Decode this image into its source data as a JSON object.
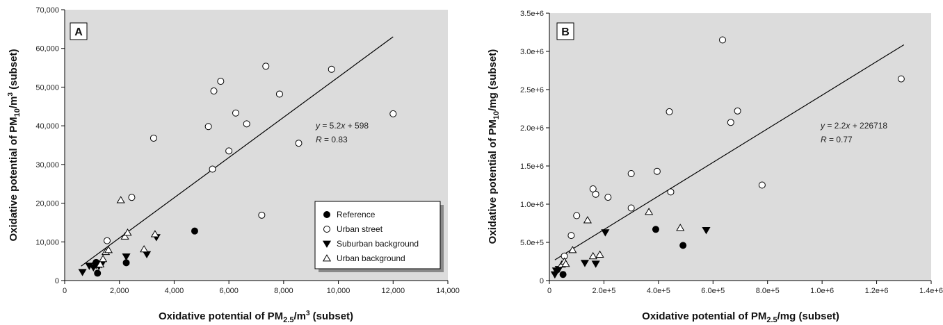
{
  "legend": {
    "items": [
      {
        "key": "reference",
        "label": "Reference"
      },
      {
        "key": "urban_street",
        "label": "Urban street"
      },
      {
        "key": "suburban_background",
        "label": "Suburban background"
      },
      {
        "key": "urban_background",
        "label": "Urban background"
      }
    ],
    "placement": "bottom-right of panel A"
  },
  "chart_data": [
    {
      "type": "scatter",
      "panel": "A",
      "xlabel": {
        "pre": "Oxidative potential of PM",
        "sub": "2.5",
        "post": "/m",
        "sup": "3",
        "tail": " (subset)"
      },
      "ylabel": {
        "pre": "Oxidative potential of PM",
        "sub": "10",
        "post": "/m",
        "sup": "3",
        "tail": " (subset)"
      },
      "xlim": [
        0,
        14000
      ],
      "ylim": [
        0,
        70000
      ],
      "xticks": [
        0,
        2000,
        4000,
        6000,
        8000,
        10000,
        12000,
        14000
      ],
      "xtick_labels": [
        "0",
        "2,000",
        "4,000",
        "6,000",
        "8,000",
        "10,000",
        "12,000",
        "14,000"
      ],
      "yticks": [
        0,
        10000,
        20000,
        30000,
        40000,
        50000,
        60000,
        70000
      ],
      "ytick_labels": [
        "0",
        "10,000",
        "20,000",
        "30,000",
        "40,000",
        "50,000",
        "60,000",
        "70,000"
      ],
      "grid": false,
      "background": "#dcdcdc",
      "fit": {
        "slope": 5.2,
        "intercept": 598,
        "x_range": [
          600,
          12000
        ],
        "label": {
          "y": "y",
          "eq": " = 5.2",
          "x": "x",
          "rest": " + 598",
          "r": "R",
          "rval": " = 0.83"
        }
      },
      "series": [
        {
          "name": "Reference",
          "key": "reference",
          "points": [
            [
              1150,
              4700
            ],
            [
              1200,
              1900
            ],
            [
              2250,
              4600
            ],
            [
              4750,
              12800
            ]
          ]
        },
        {
          "name": "Urban street",
          "key": "urban_street",
          "points": [
            [
              1550,
              10300
            ],
            [
              2450,
              21500
            ],
            [
              3250,
              36800
            ],
            [
              5250,
              39800
            ],
            [
              5400,
              28800
            ],
            [
              5450,
              49000
            ],
            [
              5700,
              51500
            ],
            [
              6000,
              33500
            ],
            [
              6250,
              43300
            ],
            [
              6650,
              40500
            ],
            [
              7200,
              16900
            ],
            [
              7350,
              55400
            ],
            [
              7850,
              48200
            ],
            [
              8550,
              35500
            ],
            [
              9750,
              54600
            ],
            [
              12000,
              43100
            ]
          ]
        },
        {
          "name": "Suburban background",
          "key": "suburban_background",
          "points": [
            [
              650,
              2200
            ],
            [
              900,
              3800
            ],
            [
              1050,
              3400
            ],
            [
              1150,
              4000
            ],
            [
              1250,
              3700
            ],
            [
              1350,
              4200
            ],
            [
              2250,
              6200
            ],
            [
              3000,
              6800
            ],
            [
              3350,
              11200
            ]
          ]
        },
        {
          "name": "Urban background",
          "key": "urban_background",
          "points": [
            [
              1300,
              4200
            ],
            [
              1400,
              5600
            ],
            [
              1500,
              7400
            ],
            [
              1600,
              7900
            ],
            [
              2050,
              20800
            ],
            [
              2200,
              11400
            ],
            [
              2300,
              12400
            ],
            [
              2900,
              8100
            ],
            [
              3300,
              12000
            ]
          ]
        }
      ]
    },
    {
      "type": "scatter",
      "panel": "B",
      "xlabel": {
        "pre": "Oxidative potential of PM",
        "sub": "2.5",
        "post": "/mg",
        "sup": "",
        "tail": " (subset)"
      },
      "ylabel": {
        "pre": "Oxidative potential of PM",
        "sub": "10",
        "post": "/mg",
        "sup": "",
        "tail": " (subset)"
      },
      "xlim": [
        0,
        1400000
      ],
      "ylim": [
        0,
        3500000
      ],
      "xticks": [
        0,
        200000,
        400000,
        600000,
        800000,
        1000000,
        1200000,
        1400000
      ],
      "xtick_labels": [
        "0",
        "2.0e+5",
        "4.0e+5",
        "6.0e+5",
        "8.0e+5",
        "1.0e+6",
        "1.2e+6",
        "1.4e+6"
      ],
      "yticks": [
        0,
        500000,
        1000000,
        1500000,
        2000000,
        2500000,
        3000000,
        3500000
      ],
      "ytick_labels": [
        "0",
        "5.0e+5",
        "1.0e+6",
        "1.5e+6",
        "2.0e+6",
        "2.5e+6",
        "3.0e+6",
        "3.5e+6"
      ],
      "grid": false,
      "background": "#dcdcdc",
      "fit": {
        "slope": 2.2,
        "intercept": 226718,
        "x_range": [
          20000,
          1300000
        ],
        "label": {
          "y": "y",
          "eq": " = 2.2",
          "x": "x",
          "rest": " + 226718",
          "r": "R",
          "rval": " = 0.77"
        }
      },
      "series": [
        {
          "name": "Reference",
          "key": "reference",
          "points": [
            [
              50000,
              80000
            ],
            [
              390000,
              670000
            ],
            [
              490000,
              460000
            ]
          ]
        },
        {
          "name": "Urban street",
          "key": "urban_street",
          "points": [
            [
              55000,
              320000
            ],
            [
              80000,
              590000
            ],
            [
              100000,
              850000
            ],
            [
              160000,
              1200000
            ],
            [
              170000,
              1130000
            ],
            [
              215000,
              1090000
            ],
            [
              300000,
              1400000
            ],
            [
              300000,
              950000
            ],
            [
              395000,
              1430000
            ],
            [
              440000,
              2210000
            ],
            [
              445000,
              1160000
            ],
            [
              635000,
              3150000
            ],
            [
              665000,
              2070000
            ],
            [
              690000,
              2220000
            ],
            [
              780000,
              1250000
            ],
            [
              1290000,
              2640000
            ]
          ]
        },
        {
          "name": "Suburban background",
          "key": "suburban_background",
          "points": [
            [
              20000,
              80000
            ],
            [
              25000,
              130000
            ],
            [
              35000,
              150000
            ],
            [
              130000,
              230000
            ],
            [
              170000,
              220000
            ],
            [
              205000,
              630000
            ],
            [
              575000,
              660000
            ]
          ]
        },
        {
          "name": "Urban background",
          "key": "urban_background",
          "points": [
            [
              45000,
              210000
            ],
            [
              55000,
              250000
            ],
            [
              60000,
              220000
            ],
            [
              85000,
              400000
            ],
            [
              140000,
              790000
            ],
            [
              160000,
              320000
            ],
            [
              185000,
              340000
            ],
            [
              365000,
              900000
            ],
            [
              480000,
              690000
            ]
          ]
        }
      ]
    }
  ]
}
